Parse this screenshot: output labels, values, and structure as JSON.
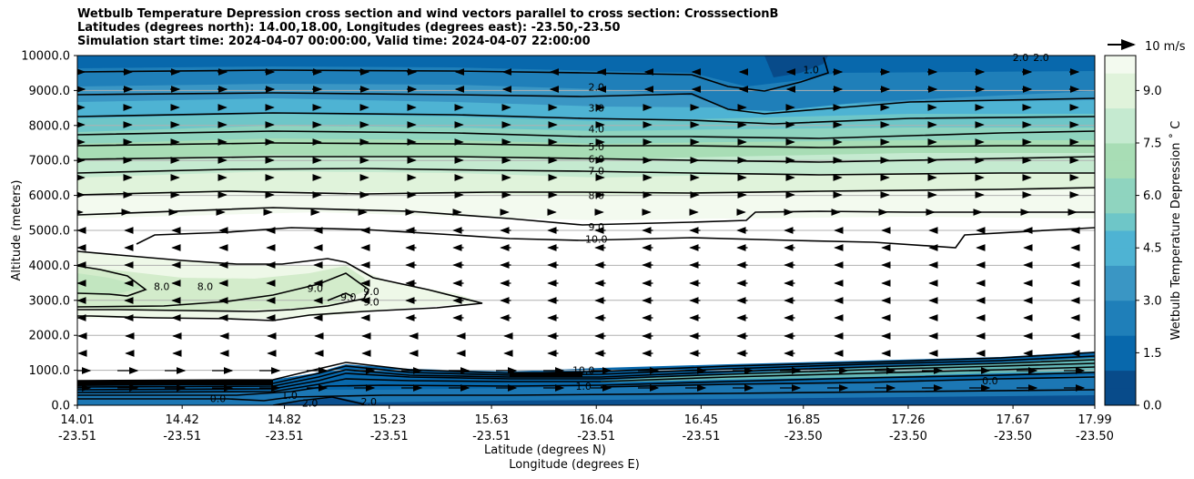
{
  "chart_data": {
    "type": "contourf",
    "title_lines": [
      "Wetbulb Temperature Depression cross section and wind vectors parallel to cross section: CrosssectionB",
      "Latitudes (degrees north): 14.00,18.00, Longitudes (degrees east): -23.50,-23.50",
      "Simulation start time: 2024-04-07 00:00:00, Valid time: 2024-04-07 22:00:00"
    ],
    "xlabel_lines": [
      "Latitude (degrees N)",
      "Longitude (degrees E)"
    ],
    "ylabel": "Altitude (meters)",
    "xlim": [
      14.01,
      17.99
    ],
    "ylim": [
      0,
      10000
    ],
    "x_ticks": [
      {
        "lat": "14.01",
        "lon": "-23.51",
        "value": 14.01
      },
      {
        "lat": "14.42",
        "lon": "-23.51",
        "value": 14.42
      },
      {
        "lat": "14.82",
        "lon": "-23.51",
        "value": 14.82
      },
      {
        "lat": "15.23",
        "lon": "-23.51",
        "value": 15.23
      },
      {
        "lat": "15.63",
        "lon": "-23.51",
        "value": 15.63
      },
      {
        "lat": "16.04",
        "lon": "-23.51",
        "value": 16.04
      },
      {
        "lat": "16.45",
        "lon": "-23.51",
        "value": 16.45
      },
      {
        "lat": "16.85",
        "lon": "-23.50",
        "value": 16.85
      },
      {
        "lat": "17.26",
        "lon": "-23.50",
        "value": 17.26
      },
      {
        "lat": "17.67",
        "lon": "-23.50",
        "value": 17.67
      },
      {
        "lat": "17.99",
        "lon": "-23.50",
        "value": 17.99
      }
    ],
    "y_ticks": [
      {
        "label": "0.0",
        "value": 0
      },
      {
        "label": "1000.0",
        "value": 1000
      },
      {
        "label": "2000.0",
        "value": 2000
      },
      {
        "label": "3000.0",
        "value": 3000
      },
      {
        "label": "4000.0",
        "value": 4000
      },
      {
        "label": "5000.0",
        "value": 5000
      },
      {
        "label": "6000.0",
        "value": 6000
      },
      {
        "label": "7000.0",
        "value": 7000
      },
      {
        "label": "8000.0",
        "value": 8000
      },
      {
        "label": "9000.0",
        "value": 9000
      },
      {
        "label": "10000.0",
        "value": 10000
      }
    ],
    "grid": "horizontal",
    "colorbar": {
      "label": "Wetbulb Temperature Depression ˚ C",
      "range": [
        0,
        10
      ],
      "ticks": [
        "0.0",
        "1.5",
        "3.0",
        "4.5",
        "6.0",
        "7.5",
        "9.0"
      ],
      "tick_values": [
        0,
        1.5,
        3,
        4.5,
        6,
        7.5,
        9
      ],
      "colors": [
        "#084b8a",
        "#0868ac",
        "#1f7fb9",
        "#3a96c4",
        "#4eb3d3",
        "#6ec6c8",
        "#8fd4bf",
        "#a8ddb5",
        "#c5ead0",
        "#e0f3db",
        "#f3faef"
      ]
    },
    "quiver_key": {
      "label": "10 m/s",
      "value": 10
    },
    "contour_labels": [
      {
        "text": "2.0",
        "x": 16.04,
        "y": 9100
      },
      {
        "text": "3.0",
        "x": 16.04,
        "y": 8500
      },
      {
        "text": "4.0",
        "x": 16.04,
        "y": 7900
      },
      {
        "text": "5.0",
        "x": 16.04,
        "y": 7400
      },
      {
        "text": "6.0",
        "x": 16.04,
        "y": 7050
      },
      {
        "text": "7.0",
        "x": 16.04,
        "y": 6700
      },
      {
        "text": "8.0",
        "x": 16.04,
        "y": 6000
      },
      {
        "text": "9.0",
        "x": 16.04,
        "y": 5100
      },
      {
        "text": "10.0",
        "x": 16.04,
        "y": 4750
      },
      {
        "text": "1.0",
        "x": 16.88,
        "y": 9600
      },
      {
        "text": "8.0",
        "x": 14.34,
        "y": 3400
      },
      {
        "text": "8.0",
        "x": 14.51,
        "y": 3400
      },
      {
        "text": "9.0",
        "x": 14.94,
        "y": 3350
      },
      {
        "text": "9.0",
        "x": 15.07,
        "y": 3100
      },
      {
        "text": "9.0",
        "x": 15.16,
        "y": 3250
      },
      {
        "text": "9.0",
        "x": 15.16,
        "y": 2950
      },
      {
        "text": "10.0",
        "x": 15.99,
        "y": 1000
      },
      {
        "text": "1.0",
        "x": 15.99,
        "y": 550
      },
      {
        "text": "0.0",
        "x": 17.58,
        "y": 700
      },
      {
        "text": "0.0",
        "x": 14.56,
        "y": 200
      },
      {
        "text": "1.0",
        "x": 14.84,
        "y": 280
      },
      {
        "text": "2.0",
        "x": 14.92,
        "y": 70
      },
      {
        "text": "2.0",
        "x": 15.15,
        "y": 100
      },
      {
        "text": "2.0",
        "x": 17.7,
        "y": 9950
      },
      {
        "text": "2.0",
        "x": 17.78,
        "y": 9950
      }
    ]
  }
}
